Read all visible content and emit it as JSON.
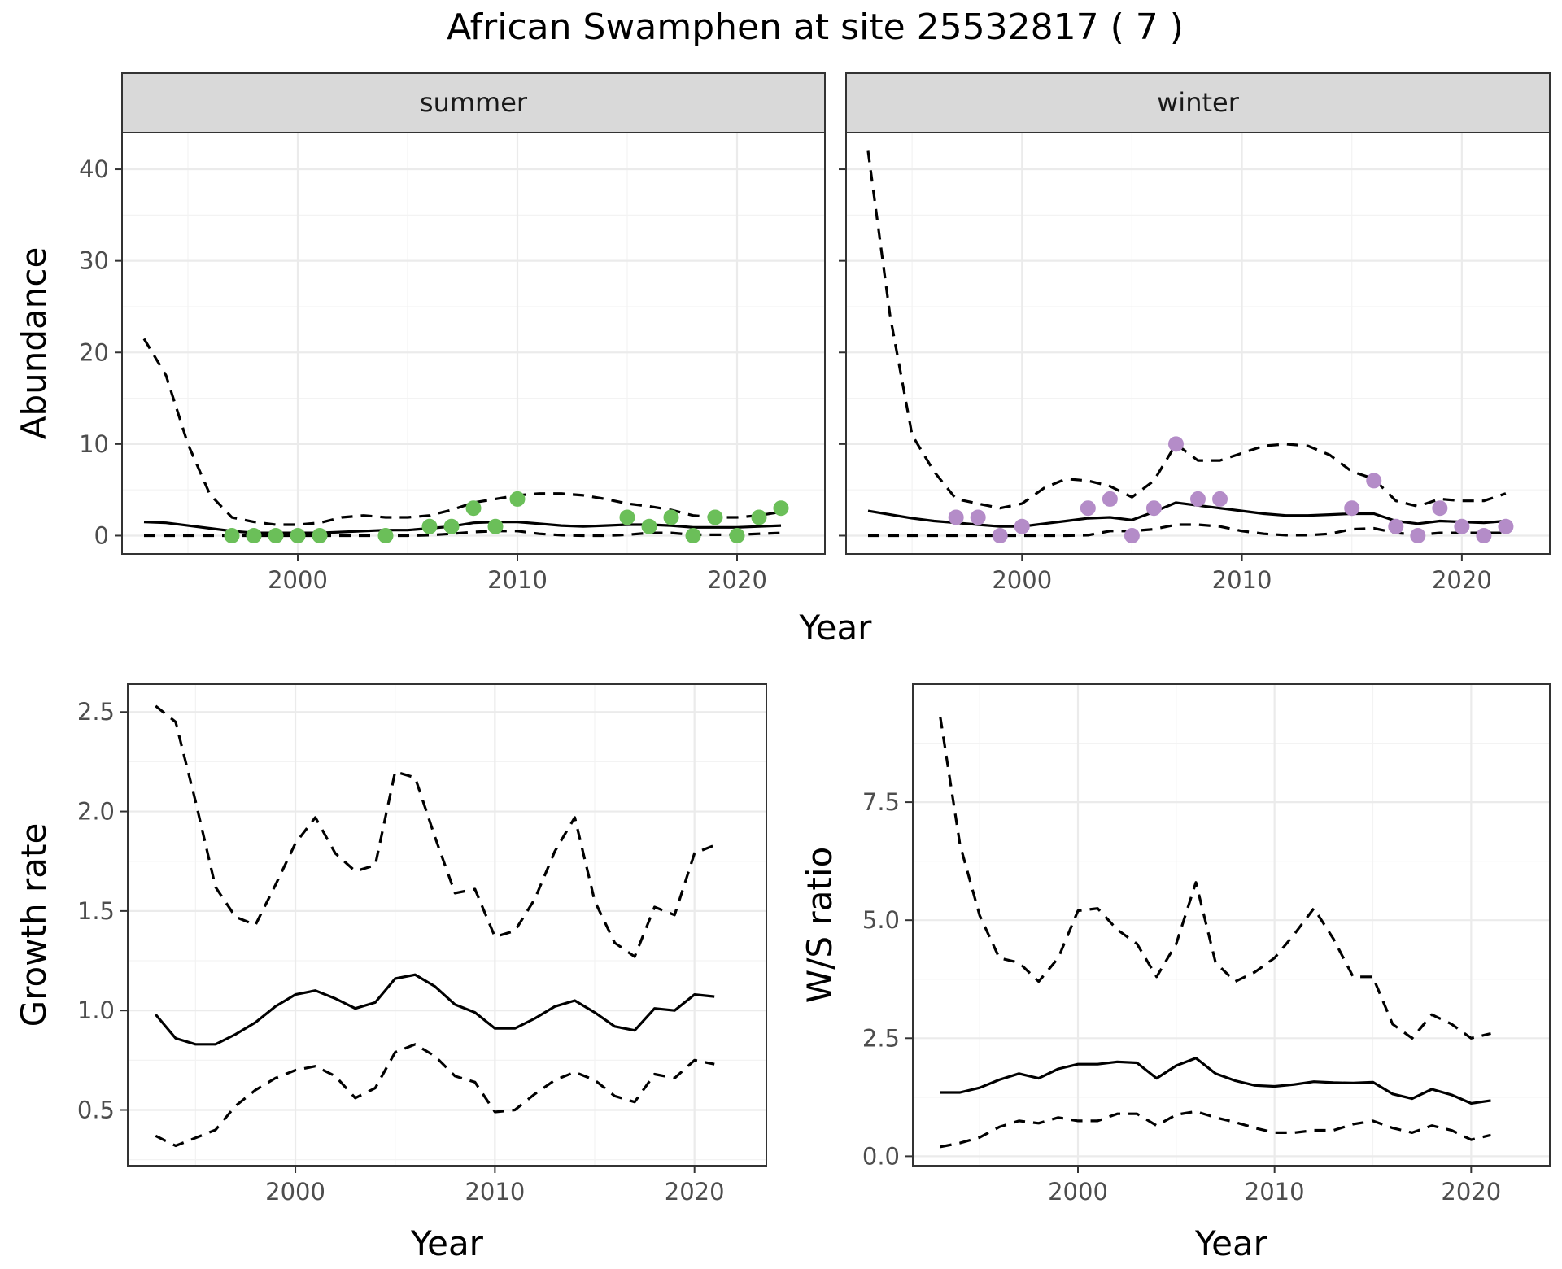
{
  "title": "African Swamphen at site 25532817 ( 7 )",
  "colors": {
    "summer_points": "#6bbf59",
    "winter_points": "#b48cc8",
    "line": "#000000",
    "strip": "#d9d9d9"
  },
  "chart_data": [
    {
      "type": "line",
      "panel": "abundance",
      "facets": [
        "summer",
        "winter"
      ],
      "xlabel": "Year",
      "ylabel": "Abundance",
      "xlim": [
        1992,
        2024
      ],
      "ylim": [
        -2,
        44
      ],
      "x_ticks": [
        2000,
        2010,
        2020
      ],
      "y_ticks": [
        0,
        10,
        20,
        30,
        40
      ],
      "summer": {
        "estimate": {
          "x": [
            1993,
            1994,
            1995,
            1996,
            1997,
            1998,
            1999,
            2000,
            2001,
            2002,
            2003,
            2004,
            2005,
            2006,
            2007,
            2008,
            2009,
            2010,
            2011,
            2012,
            2013,
            2014,
            2015,
            2016,
            2017,
            2018,
            2019,
            2020,
            2021,
            2022
          ],
          "y": [
            1.5,
            1.4,
            1.1,
            0.8,
            0.5,
            0.3,
            0.3,
            0.3,
            0.3,
            0.4,
            0.5,
            0.6,
            0.6,
            0.8,
            1.0,
            1.4,
            1.5,
            1.5,
            1.3,
            1.1,
            1.0,
            1.1,
            1.2,
            1.2,
            1.1,
            0.9,
            0.9,
            0.9,
            1.0,
            1.1
          ]
        },
        "upper": {
          "x": [
            1993,
            1994,
            1995,
            1996,
            1997,
            1998,
            1999,
            2000,
            2001,
            2002,
            2003,
            2004,
            2005,
            2006,
            2007,
            2008,
            2009,
            2010,
            2011,
            2012,
            2013,
            2014,
            2015,
            2016,
            2017,
            2018,
            2019,
            2020,
            2021,
            2022
          ],
          "y": [
            21.5,
            17.5,
            10.0,
            4.5,
            2.0,
            1.5,
            1.2,
            1.2,
            1.4,
            2.0,
            2.2,
            2.0,
            2.0,
            2.2,
            2.8,
            3.6,
            4.0,
            4.4,
            4.6,
            4.6,
            4.4,
            4.0,
            3.5,
            3.2,
            2.8,
            2.2,
            2.0,
            2.0,
            2.2,
            2.6
          ]
        },
        "lower": {
          "x": [
            1993,
            1994,
            1995,
            1996,
            1997,
            1998,
            1999,
            2000,
            2001,
            2002,
            2003,
            2004,
            2005,
            2006,
            2007,
            2008,
            2009,
            2010,
            2011,
            2012,
            2013,
            2014,
            2015,
            2016,
            2017,
            2018,
            2019,
            2020,
            2021,
            2022
          ],
          "y": [
            0,
            0,
            0,
            0,
            0,
            0,
            0,
            0,
            0,
            0,
            0,
            0,
            0,
            0.05,
            0.2,
            0.4,
            0.5,
            0.5,
            0.2,
            0.05,
            0,
            0,
            0.1,
            0.3,
            0.3,
            0.1,
            0.1,
            0.1,
            0.2,
            0.3
          ]
        },
        "points": {
          "x": [
            1997,
            1998,
            1999,
            2000,
            2001,
            2004,
            2006,
            2007,
            2008,
            2009,
            2010,
            2015,
            2016,
            2017,
            2018,
            2019,
            2020,
            2021,
            2022
          ],
          "y": [
            0,
            0,
            0,
            0,
            0,
            0,
            1,
            1,
            3,
            1,
            4,
            2,
            1,
            2,
            0,
            2,
            0,
            2,
            3
          ]
        }
      },
      "winter": {
        "estimate": {
          "x": [
            1993,
            1994,
            1995,
            1996,
            1997,
            1998,
            1999,
            2000,
            2001,
            2002,
            2003,
            2004,
            2005,
            2006,
            2007,
            2008,
            2009,
            2010,
            2011,
            2012,
            2013,
            2014,
            2015,
            2016,
            2017,
            2018,
            2019,
            2020,
            2021,
            2022
          ],
          "y": [
            2.7,
            2.3,
            1.9,
            1.6,
            1.4,
            1.2,
            1.0,
            1.0,
            1.3,
            1.6,
            1.9,
            2.0,
            1.7,
            2.6,
            3.6,
            3.3,
            3.0,
            2.7,
            2.4,
            2.2,
            2.2,
            2.3,
            2.4,
            2.4,
            1.6,
            1.3,
            1.6,
            1.5,
            1.4,
            1.6
          ]
        },
        "upper": {
          "x": [
            1993,
            1994,
            1995,
            1996,
            1997,
            1998,
            1999,
            2000,
            2001,
            2002,
            2003,
            2004,
            2005,
            2006,
            2007,
            2008,
            2009,
            2010,
            2011,
            2012,
            2013,
            2014,
            2015,
            2016,
            2017,
            2018,
            2019,
            2020,
            2021,
            2022
          ],
          "y": [
            42.0,
            24.0,
            11.0,
            7.0,
            4.0,
            3.5,
            3.0,
            3.5,
            5.2,
            6.2,
            6.0,
            5.4,
            4.2,
            6.0,
            10.0,
            8.2,
            8.2,
            9.0,
            9.8,
            10.0,
            9.8,
            8.8,
            7.0,
            6.2,
            3.8,
            3.2,
            4.0,
            3.8,
            3.8,
            4.6
          ]
        },
        "lower": {
          "x": [
            1993,
            1994,
            1995,
            1996,
            1997,
            1998,
            1999,
            2000,
            2001,
            2002,
            2003,
            2004,
            2005,
            2006,
            2007,
            2008,
            2009,
            2010,
            2011,
            2012,
            2013,
            2014,
            2015,
            2016,
            2017,
            2018,
            2019,
            2020,
            2021,
            2022
          ],
          "y": [
            0,
            0,
            0,
            0,
            0,
            0,
            0,
            0,
            0,
            0,
            0.05,
            0.5,
            0.5,
            0.7,
            1.2,
            1.2,
            1.0,
            0.5,
            0.2,
            0.05,
            0.05,
            0.2,
            0.7,
            0.8,
            0.3,
            0.1,
            0.3,
            0.3,
            0.3,
            0.3
          ]
        },
        "points": {
          "x": [
            1997,
            1998,
            1999,
            2000,
            2003,
            2004,
            2005,
            2006,
            2007,
            2008,
            2009,
            2015,
            2016,
            2017,
            2018,
            2019,
            2020,
            2021,
            2022
          ],
          "y": [
            2,
            2,
            0,
            1,
            3,
            4,
            0,
            3,
            10,
            4,
            4,
            3,
            6,
            1,
            0,
            3,
            1,
            0,
            1
          ]
        }
      }
    },
    {
      "type": "line",
      "panel": "growth",
      "xlabel": "Year",
      "ylabel": "Growth rate",
      "xlim": [
        1991.6,
        2023.6
      ],
      "ylim": [
        0.22,
        2.64
      ],
      "x_ticks": [
        2000,
        2010,
        2020
      ],
      "y_ticks": [
        0.5,
        1.0,
        1.5,
        2.0,
        2.5
      ],
      "y_tick_labels": [
        "0.5",
        "1.0",
        "1.5",
        "2.0",
        "2.5"
      ],
      "estimate": {
        "x": [
          1993,
          1994,
          1995,
          1996,
          1997,
          1998,
          1999,
          2000,
          2001,
          2002,
          2003,
          2004,
          2005,
          2006,
          2007,
          2008,
          2009,
          2010,
          2011,
          2012,
          2013,
          2014,
          2015,
          2016,
          2017,
          2018,
          2019,
          2020,
          2021
        ],
        "y": [
          0.98,
          0.86,
          0.83,
          0.83,
          0.88,
          0.94,
          1.02,
          1.08,
          1.1,
          1.06,
          1.01,
          1.04,
          1.16,
          1.18,
          1.12,
          1.03,
          0.99,
          0.91,
          0.91,
          0.96,
          1.02,
          1.05,
          0.99,
          0.92,
          0.9,
          1.01,
          1.0,
          1.08,
          1.07
        ]
      },
      "upper": {
        "x": [
          1993,
          1994,
          1995,
          1996,
          1997,
          1998,
          1999,
          2000,
          2001,
          2002,
          2003,
          2004,
          2005,
          2006,
          2007,
          2008,
          2009,
          2010,
          2011,
          2012,
          2013,
          2014,
          2015,
          2016,
          2017,
          2018,
          2019,
          2020,
          2021
        ],
        "y": [
          2.53,
          2.45,
          2.05,
          1.62,
          1.47,
          1.43,
          1.63,
          1.84,
          1.97,
          1.79,
          1.7,
          1.73,
          2.2,
          2.17,
          1.87,
          1.59,
          1.61,
          1.37,
          1.4,
          1.56,
          1.8,
          1.97,
          1.55,
          1.34,
          1.27,
          1.52,
          1.48,
          1.79,
          1.83
        ]
      },
      "lower": {
        "x": [
          1993,
          1994,
          1995,
          1996,
          1997,
          1998,
          1999,
          2000,
          2001,
          2002,
          2003,
          2004,
          2005,
          2006,
          2007,
          2008,
          2009,
          2010,
          2011,
          2012,
          2013,
          2014,
          2015,
          2016,
          2017,
          2018,
          2019,
          2020,
          2021
        ],
        "y": [
          0.37,
          0.32,
          0.36,
          0.4,
          0.52,
          0.6,
          0.66,
          0.7,
          0.72,
          0.67,
          0.56,
          0.61,
          0.79,
          0.83,
          0.77,
          0.67,
          0.64,
          0.49,
          0.5,
          0.58,
          0.65,
          0.69,
          0.65,
          0.57,
          0.54,
          0.68,
          0.66,
          0.75,
          0.73
        ]
      }
    },
    {
      "type": "line",
      "panel": "ratio",
      "xlabel": "Year",
      "ylabel": "W/S ratio",
      "xlim": [
        1991.6,
        2024.0
      ],
      "ylim": [
        -0.2,
        10.0
      ],
      "x_ticks": [
        2000,
        2010,
        2020
      ],
      "y_ticks": [
        0,
        2.5,
        5,
        7.5
      ],
      "y_tick_labels": [
        "0.0",
        "2.5",
        "5.0",
        "7.5"
      ],
      "estimate": {
        "x": [
          1993,
          1994,
          1995,
          1996,
          1997,
          1998,
          1999,
          2000,
          2001,
          2002,
          2003,
          2004,
          2005,
          2006,
          2007,
          2008,
          2009,
          2010,
          2011,
          2012,
          2013,
          2014,
          2015,
          2016,
          2017,
          2018,
          2019,
          2020,
          2021
        ],
        "y": [
          1.35,
          1.35,
          1.45,
          1.62,
          1.75,
          1.65,
          1.85,
          1.95,
          1.95,
          2.0,
          1.98,
          1.65,
          1.92,
          2.08,
          1.75,
          1.6,
          1.5,
          1.48,
          1.52,
          1.58,
          1.56,
          1.55,
          1.57,
          1.32,
          1.22,
          1.42,
          1.3,
          1.12,
          1.18
        ]
      },
      "upper": {
        "x": [
          1993,
          1994,
          1995,
          1996,
          1997,
          1998,
          1999,
          2000,
          2001,
          2002,
          2003,
          2004,
          2005,
          2006,
          2007,
          2008,
          2009,
          2010,
          2011,
          2012,
          2013,
          2014,
          2015,
          2016,
          2017,
          2018,
          2019,
          2020,
          2021
        ],
        "y": [
          9.3,
          6.6,
          5.1,
          4.2,
          4.1,
          3.7,
          4.2,
          5.2,
          5.25,
          4.8,
          4.5,
          3.8,
          4.5,
          5.8,
          4.1,
          3.7,
          3.9,
          4.2,
          4.7,
          5.25,
          4.6,
          3.8,
          3.8,
          2.8,
          2.5,
          3.0,
          2.8,
          2.5,
          2.6
        ]
      },
      "lower": {
        "x": [
          1993,
          1994,
          1995,
          1996,
          1997,
          1998,
          1999,
          2000,
          2001,
          2002,
          2003,
          2004,
          2005,
          2006,
          2007,
          2008,
          2009,
          2010,
          2011,
          2012,
          2013,
          2014,
          2015,
          2016,
          2017,
          2018,
          2019,
          2020,
          2021
        ],
        "y": [
          0.2,
          0.28,
          0.4,
          0.62,
          0.75,
          0.7,
          0.82,
          0.75,
          0.75,
          0.9,
          0.9,
          0.65,
          0.88,
          0.95,
          0.82,
          0.72,
          0.6,
          0.5,
          0.5,
          0.55,
          0.55,
          0.68,
          0.75,
          0.6,
          0.5,
          0.65,
          0.55,
          0.35,
          0.45
        ]
      }
    }
  ]
}
